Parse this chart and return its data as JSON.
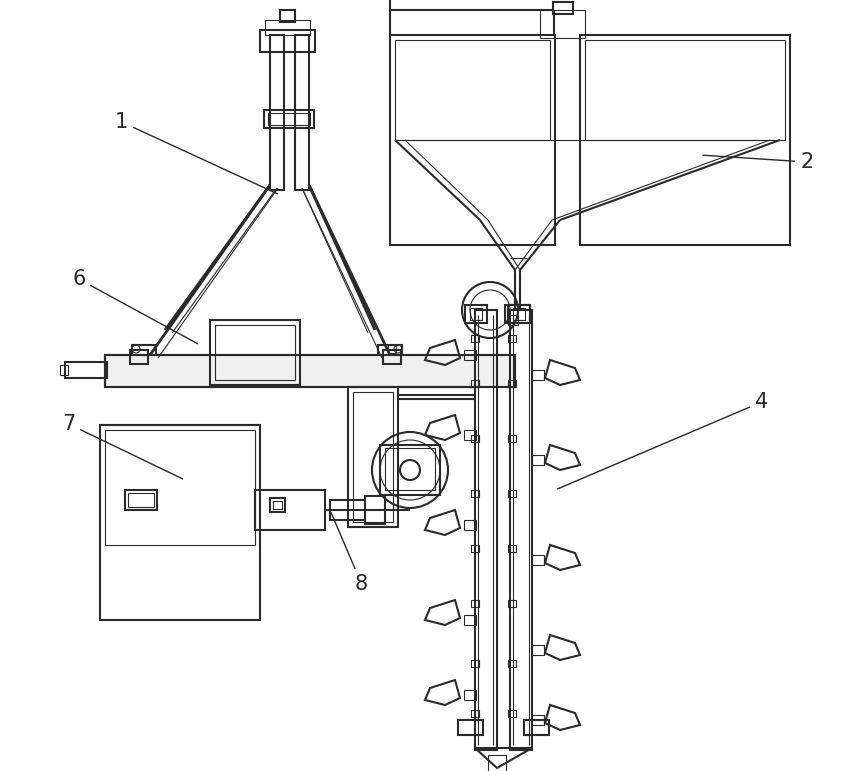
{
  "bg_color": "#ffffff",
  "line_color": "#2a2a2a",
  "line_width": 1.5,
  "thin_line": 0.8,
  "label_fontsize": 15
}
